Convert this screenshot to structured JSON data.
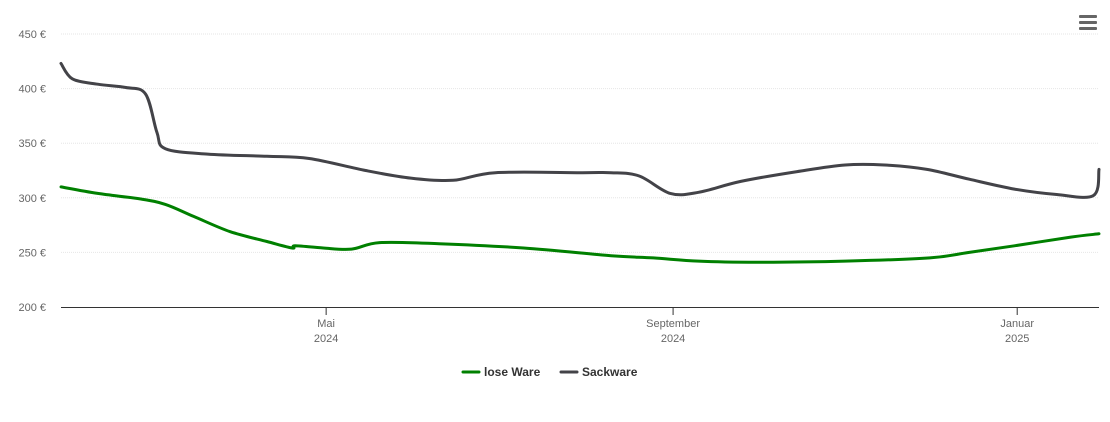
{
  "chart_data": {
    "type": "line",
    "title": "",
    "xlabel": "",
    "ylabel": "",
    "ylim": [
      200,
      450
    ],
    "y_ticks": [
      200,
      250,
      300,
      350,
      400,
      450
    ],
    "y_tick_labels": [
      "200 €",
      "250 €",
      "300 €",
      "350 €",
      "400 €",
      "450 €"
    ],
    "xlim": [
      "2024-01-28",
      "2025-01-30"
    ],
    "x_ticks": [
      {
        "date": "2024-05-01",
        "label": "Mai",
        "year": "2024"
      },
      {
        "date": "2024-09-01",
        "label": "September",
        "year": "2024"
      },
      {
        "date": "2025-01-01",
        "label": "Januar",
        "year": "2025"
      }
    ],
    "grid": true,
    "legend_position": "bottom-center",
    "series": [
      {
        "name": "lose Ware",
        "color": "#008000",
        "points": [
          [
            "2024-01-28",
            310
          ],
          [
            "2024-02-10",
            304
          ],
          [
            "2024-02-25",
            299
          ],
          [
            "2024-03-05",
            294
          ],
          [
            "2024-03-15",
            283
          ],
          [
            "2024-03-28",
            269
          ],
          [
            "2024-04-10",
            260
          ],
          [
            "2024-04-19",
            254
          ],
          [
            "2024-04-20",
            256
          ],
          [
            "2024-04-30",
            254
          ],
          [
            "2024-05-10",
            253
          ],
          [
            "2024-05-20",
            259
          ],
          [
            "2024-06-10",
            258
          ],
          [
            "2024-07-10",
            254
          ],
          [
            "2024-08-10",
            247
          ],
          [
            "2024-08-25",
            245
          ],
          [
            "2024-09-10",
            242
          ],
          [
            "2024-10-01",
            241
          ],
          [
            "2024-11-01",
            242
          ],
          [
            "2024-12-01",
            245
          ],
          [
            "2024-12-15",
            250
          ],
          [
            "2024-12-31",
            256
          ],
          [
            "2025-01-20",
            264
          ],
          [
            "2025-01-30",
            267
          ]
        ]
      },
      {
        "name": "Sackware",
        "color": "#434348",
        "points": [
          [
            "2024-01-28",
            423
          ],
          [
            "2024-02-01",
            409
          ],
          [
            "2024-02-10",
            404
          ],
          [
            "2024-02-20",
            401
          ],
          [
            "2024-02-27",
            395
          ],
          [
            "2024-03-02",
            360
          ],
          [
            "2024-03-05",
            345
          ],
          [
            "2024-03-20",
            340
          ],
          [
            "2024-04-10",
            338
          ],
          [
            "2024-04-25",
            336
          ],
          [
            "2024-05-15",
            325
          ],
          [
            "2024-05-31",
            318
          ],
          [
            "2024-06-15",
            316
          ],
          [
            "2024-06-30",
            323
          ],
          [
            "2024-07-31",
            323
          ],
          [
            "2024-08-10",
            323
          ],
          [
            "2024-08-20",
            320
          ],
          [
            "2024-08-31",
            304
          ],
          [
            "2024-09-10",
            305
          ],
          [
            "2024-09-25",
            315
          ],
          [
            "2024-10-15",
            324
          ],
          [
            "2024-11-01",
            330
          ],
          [
            "2024-11-15",
            330
          ],
          [
            "2024-11-30",
            326
          ],
          [
            "2024-12-15",
            317
          ],
          [
            "2024-12-31",
            308
          ],
          [
            "2025-01-15",
            303
          ],
          [
            "2025-01-28",
            302
          ],
          [
            "2025-01-30",
            326
          ]
        ]
      }
    ]
  },
  "ui": {
    "menu_icon": "hamburger-menu-icon"
  }
}
